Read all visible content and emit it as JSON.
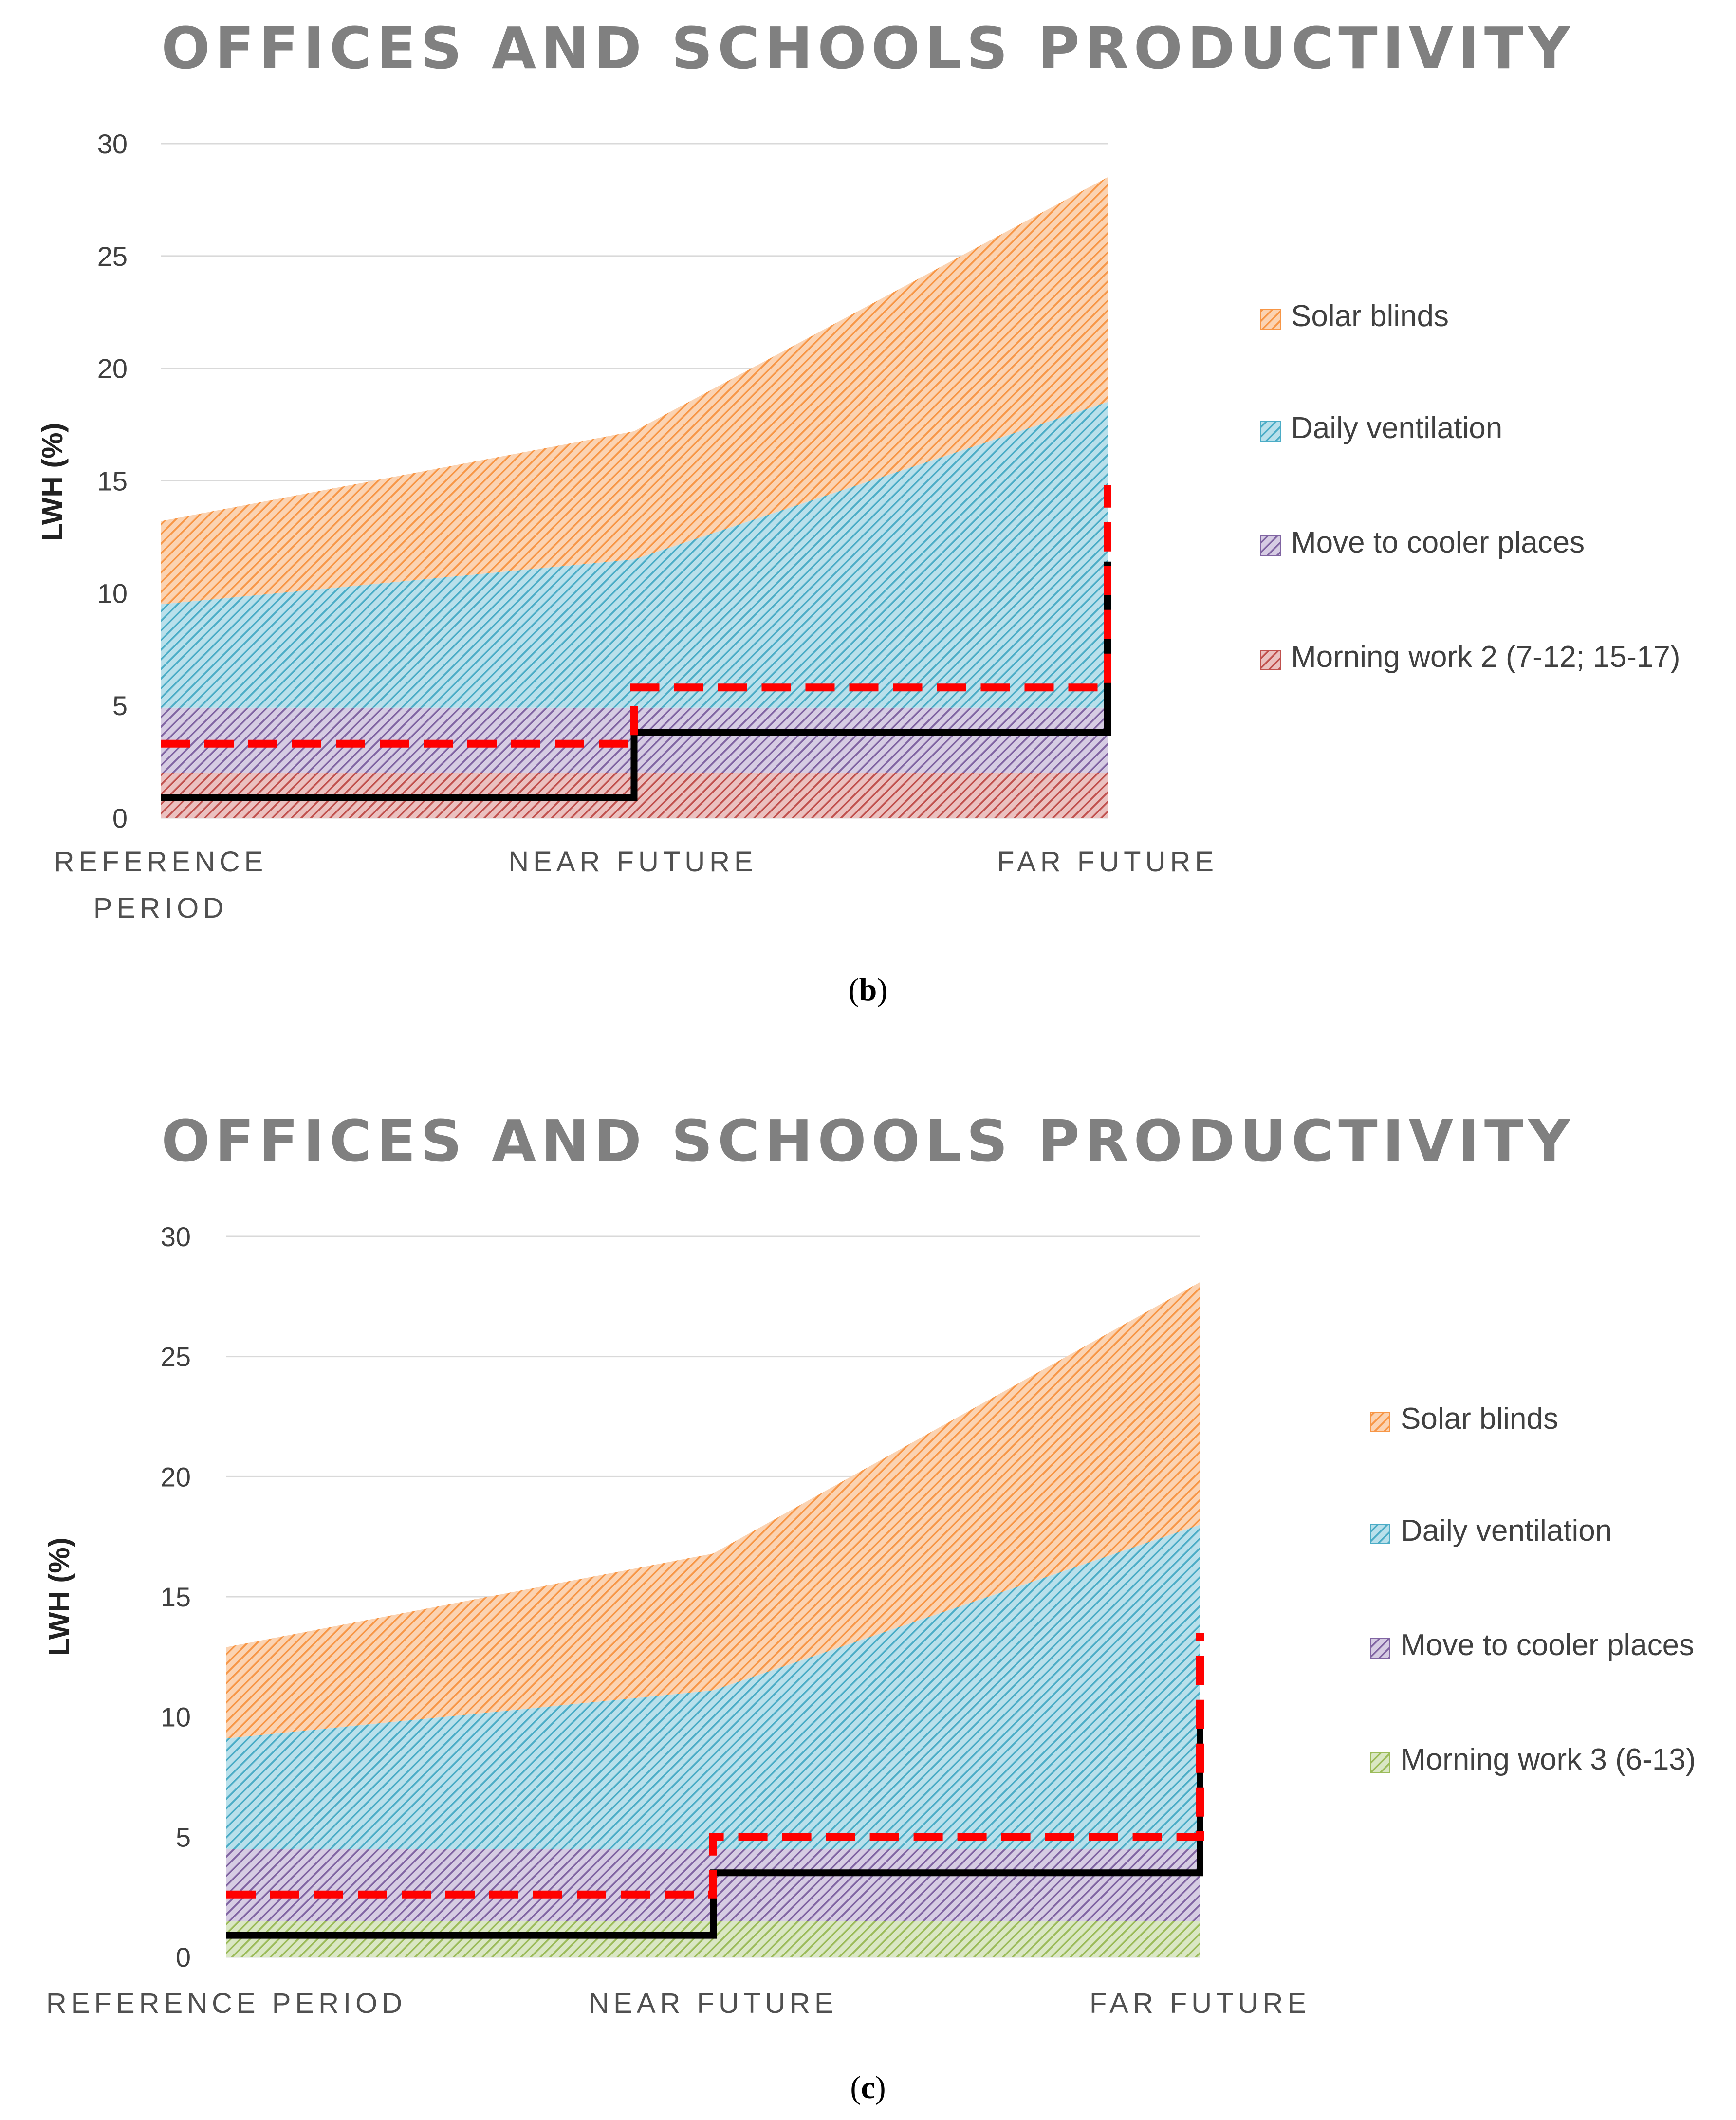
{
  "colors": {
    "solar": "#F79646",
    "ventilation": "#4BACC6",
    "cooler": "#8064A2",
    "morning2": "#C0504D",
    "morning3": "#9BBB59",
    "black_line": "#000000",
    "red_dashed": "#FF0000",
    "title": "#808080"
  },
  "chart_data": [
    {
      "type": "area",
      "stacked": true,
      "panel": "b",
      "title": "OFFICES AND SCHOOLS PRODUCTIVITY",
      "ylabel": "LWH (%)",
      "xlabel": "",
      "ylim": [
        0,
        30
      ],
      "yticks": [
        0,
        5,
        10,
        15,
        20,
        25,
        30
      ],
      "categories": [
        "REFERENCE PERIOD",
        "NEAR FUTURE",
        "FAR FUTURE"
      ],
      "category_lines": [
        [
          "REFERENCE",
          "PERIOD"
        ],
        [
          "NEAR FUTURE"
        ],
        [
          "FAR FUTURE"
        ]
      ],
      "legend_position": "right",
      "series": [
        {
          "name": "Morning work 2 (7-12; 15-17)",
          "color_key": "morning2",
          "values": [
            2,
            2,
            2
          ]
        },
        {
          "name": "Move to cooler places",
          "color_key": "cooler",
          "values": [
            2.9,
            2.9,
            2.9
          ]
        },
        {
          "name": "Daily ventilation",
          "color_key": "ventilation",
          "values": [
            4.6,
            6.6,
            13.6
          ]
        },
        {
          "name": "Solar blinds",
          "color_key": "solar",
          "values": [
            3.7,
            5.7,
            10
          ]
        }
      ],
      "legend_order": [
        "Solar blinds",
        "Daily ventilation",
        "Move to cooler places",
        "Morning work 2 (7-12; 15-17)"
      ],
      "step_lines": [
        {
          "style": "solid-black",
          "x": [
            0,
            1,
            1,
            2,
            2
          ],
          "y": [
            0.9,
            0.9,
            3.8,
            3.8,
            11.4
          ]
        },
        {
          "style": "dashed-red",
          "x": [
            0,
            1,
            1,
            2,
            2
          ],
          "y": [
            3.3,
            3.3,
            5.8,
            5.8,
            14.8
          ]
        }
      ],
      "panel_label": "b"
    },
    {
      "type": "area",
      "stacked": true,
      "panel": "c",
      "title": "OFFICES AND SCHOOLS PRODUCTIVITY",
      "ylabel": "LWH (%)",
      "xlabel": "",
      "ylim": [
        0,
        30
      ],
      "yticks": [
        0,
        5,
        10,
        15,
        20,
        25,
        30
      ],
      "categories": [
        "REFERENCE PERIOD",
        "NEAR FUTURE",
        "FAR FUTURE"
      ],
      "category_lines": [
        [
          "REFERENCE PERIOD"
        ],
        [
          "NEAR FUTURE"
        ],
        [
          "FAR FUTURE"
        ]
      ],
      "legend_position": "right",
      "series": [
        {
          "name": "Morning work 3 (6-13)",
          "color_key": "morning3",
          "values": [
            1.5,
            1.5,
            1.5
          ]
        },
        {
          "name": "Move to cooler places",
          "color_key": "cooler",
          "values": [
            3,
            3,
            3
          ]
        },
        {
          "name": "Daily ventilation",
          "color_key": "ventilation",
          "values": [
            4.6,
            6.6,
            13.5
          ]
        },
        {
          "name": "Solar blinds",
          "color_key": "solar",
          "values": [
            3.8,
            5.7,
            10.1
          ]
        }
      ],
      "legend_order": [
        "Solar blinds",
        "Daily ventilation",
        "Move to cooler places",
        "Morning work 3 (6-13)"
      ],
      "step_lines": [
        {
          "style": "solid-black",
          "x": [
            0,
            1,
            1,
            2,
            2
          ],
          "y": [
            0.9,
            0.9,
            3.5,
            3.5,
            10.7
          ]
        },
        {
          "style": "dashed-red",
          "x": [
            0,
            1,
            1,
            2,
            2
          ],
          "y": [
            2.6,
            2.6,
            5,
            5,
            13.5
          ]
        }
      ],
      "panel_label": "c"
    }
  ],
  "captions": {
    "b": {
      "open": "(",
      "letter": "b",
      "close": ")"
    },
    "c": {
      "open": "(",
      "letter": "c",
      "close": ")"
    }
  }
}
